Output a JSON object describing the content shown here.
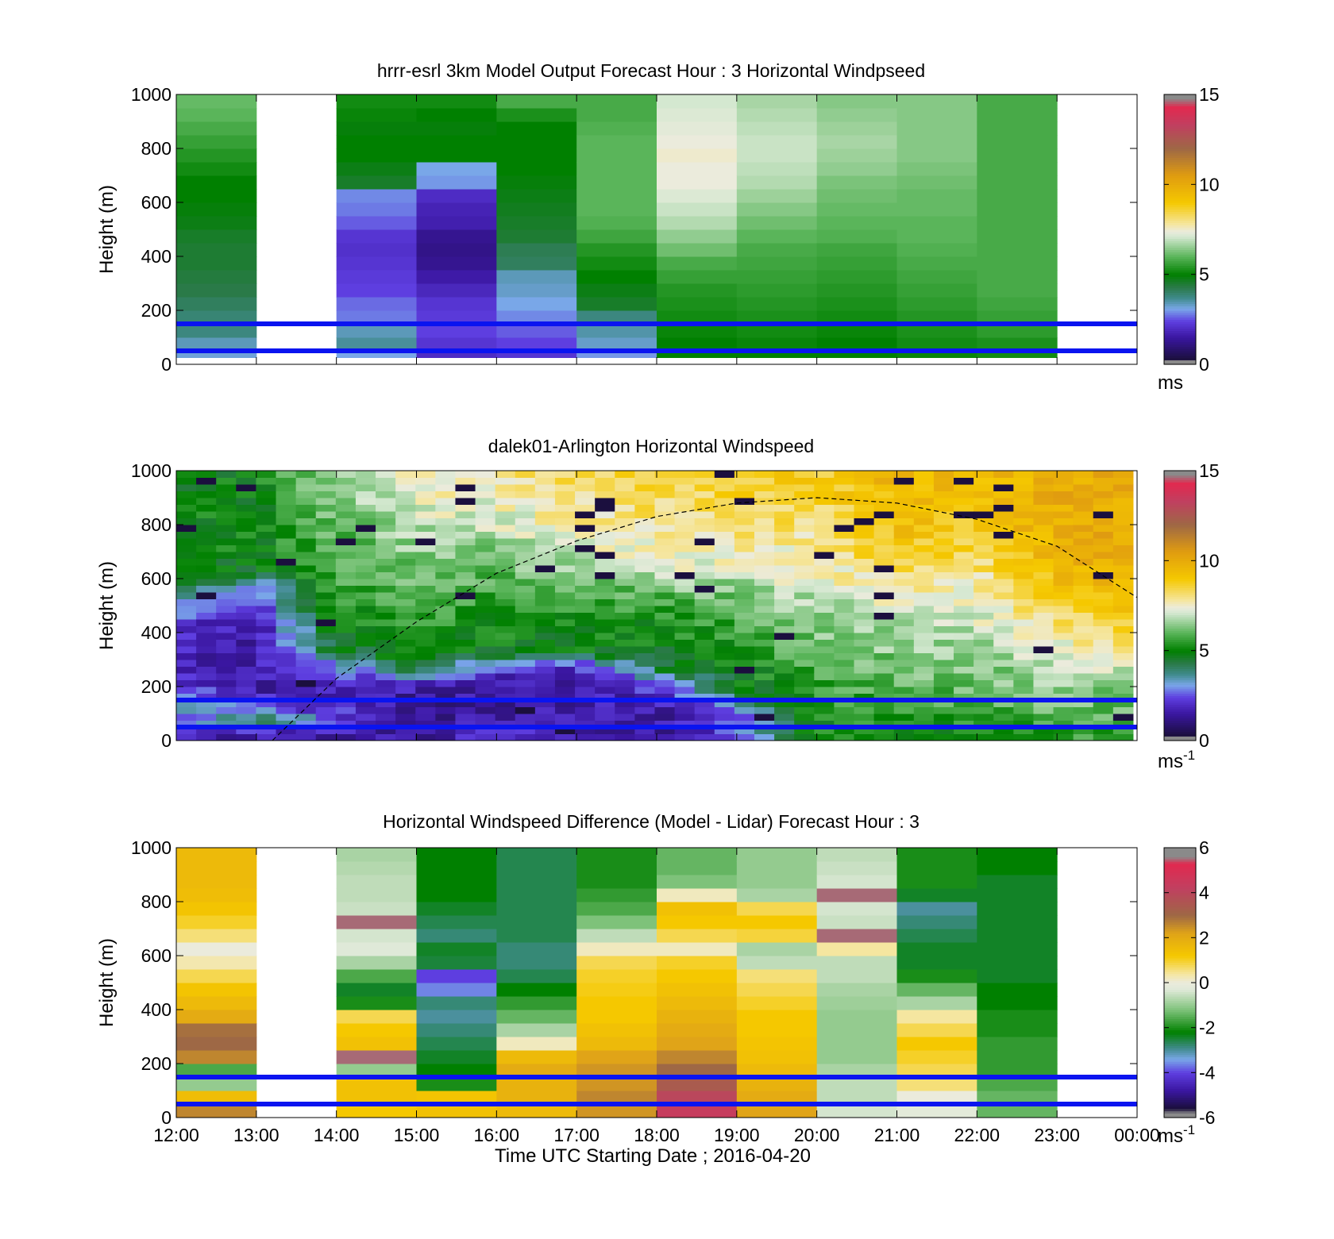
{
  "chart_data": [
    {
      "type": "heatmap",
      "title": "hrrr-esrl 3km Model Output   Forecast Hour : 3 Horizontal Windpseed",
      "ylabel": "Height (m)",
      "ylim": [
        0,
        1000
      ],
      "yticks": [
        0,
        200,
        400,
        600,
        800,
        1000
      ],
      "xlim_hours": [
        12,
        24
      ],
      "reference_lines_m": [
        50,
        150
      ],
      "colorbar": {
        "min": 0,
        "max": 15,
        "ticks": [
          0,
          5,
          10,
          15
        ],
        "unit_label": "ms",
        "unit_superscript": ""
      },
      "y_levels": [
        25,
        75,
        125,
        175,
        225,
        275,
        325,
        375,
        425,
        475,
        525,
        575,
        625,
        675,
        725,
        775,
        825,
        875,
        925,
        975
      ],
      "columns": [
        {
          "hour": 12,
          "values": [
            3.2,
            3.4,
            3.8,
            3.9,
            4.1,
            4.3,
            4.4,
            4.5,
            4.5,
            4.6,
            4.8,
            4.9,
            5.0,
            5.0,
            5.2,
            5.4,
            5.6,
            5.8,
            6.0,
            6.1
          ]
        },
        {
          "hour": 13,
          "values": null
        },
        {
          "hour": 14,
          "values": [
            3.1,
            3.6,
            3.4,
            2.8,
            2.7,
            2.4,
            2.3,
            2.2,
            2.1,
            2.2,
            2.6,
            2.8,
            2.9,
            4.6,
            4.8,
            5.0,
            5.0,
            4.9,
            5.1,
            5.2
          ]
        },
        {
          "hour": 15,
          "values": [
            2.0,
            2.2,
            2.4,
            2.3,
            2.2,
            1.9,
            1.6,
            1.3,
            1.2,
            1.3,
            1.7,
            1.8,
            2.0,
            3.0,
            3.1,
            5.0,
            5.0,
            4.9,
            5.0,
            5.2
          ]
        },
        {
          "hour": 16,
          "values": [
            2.2,
            2.4,
            2.6,
            2.9,
            3.1,
            3.3,
            3.4,
            4.1,
            4.2,
            4.5,
            4.6,
            4.7,
            4.8,
            4.9,
            5.0,
            5.0,
            5.0,
            5.0,
            5.3,
            5.8
          ]
        },
        {
          "hour": 17,
          "values": [
            3.0,
            3.3,
            3.5,
            3.8,
            4.6,
            4.8,
            5.0,
            5.2,
            5.4,
            5.7,
            5.9,
            6.0,
            6.0,
            6.0,
            6.0,
            6.0,
            6.0,
            5.9,
            5.8,
            5.8
          ]
        },
        {
          "hour": 18,
          "values": [
            5.0,
            5.0,
            5.1,
            5.2,
            5.3,
            5.4,
            5.6,
            5.8,
            6.2,
            6.5,
            6.8,
            7.0,
            7.2,
            7.4,
            7.4,
            7.5,
            7.4,
            7.3,
            7.2,
            7.1
          ]
        },
        {
          "hour": 19,
          "values": [
            5.0,
            5.1,
            5.2,
            5.3,
            5.4,
            5.5,
            5.6,
            5.7,
            5.8,
            6.0,
            6.2,
            6.4,
            6.6,
            6.8,
            6.9,
            7.0,
            7.0,
            6.9,
            6.8,
            6.7
          ]
        },
        {
          "hour": 20,
          "values": [
            5.0,
            5.0,
            5.1,
            5.2,
            5.3,
            5.4,
            5.5,
            5.6,
            5.7,
            5.9,
            6.0,
            6.1,
            6.2,
            6.3,
            6.5,
            6.6,
            6.7,
            6.6,
            6.5,
            6.4
          ]
        },
        {
          "hour": 21,
          "values": [
            5.1,
            5.2,
            5.3,
            5.4,
            5.5,
            5.6,
            5.7,
            5.8,
            5.9,
            6.0,
            6.0,
            6.1,
            6.1,
            6.2,
            6.3,
            6.4,
            6.4,
            6.4,
            6.4,
            6.4
          ]
        },
        {
          "hour": 22,
          "values": [
            5.2,
            5.3,
            5.5,
            5.6,
            5.7,
            5.8,
            5.8,
            5.8,
            5.8,
            5.8,
            5.8,
            5.8,
            5.8,
            5.8,
            5.8,
            5.8,
            5.8,
            5.8,
            5.8,
            5.8
          ]
        },
        {
          "hour": 23,
          "values": null
        }
      ]
    },
    {
      "type": "heatmap",
      "title": "dalek01-Arlington  Horizontal Windspeed",
      "ylabel": "Height (m)",
      "ylim": [
        0,
        1000
      ],
      "yticks": [
        0,
        200,
        400,
        600,
        800,
        1000
      ],
      "xlim_hours": [
        12,
        24
      ],
      "reference_lines_m": [
        50,
        150
      ],
      "colorbar": {
        "min": 0,
        "max": 15,
        "ticks": [
          0,
          5,
          10,
          15
        ],
        "unit_label": "ms",
        "unit_superscript": "-1"
      },
      "data_end_hour": 23.95,
      "mixing_height_curve": {
        "x_hours": [
          13.2,
          14.0,
          15.0,
          16.0,
          17.0,
          18.0,
          19.0,
          20.0,
          21.0,
          22.0,
          23.0,
          24.0
        ],
        "y_m": [
          0,
          230,
          440,
          620,
          740,
          830,
          880,
          900,
          880,
          820,
          720,
          530
        ]
      },
      "y_levels": [
        25,
        75,
        125,
        175,
        225,
        275,
        325,
        375,
        425,
        475,
        525,
        575,
        625,
        675,
        725,
        775,
        825,
        875,
        925,
        975
      ],
      "keyframes": [
        {
          "hour": 12.0,
          "values": [
            2.0,
            2.5,
            3.5,
            2.5,
            2.0,
            2.0,
            1.8,
            2.0,
            2.2,
            2.6,
            3.2,
            4.6,
            4.8,
            4.9,
            5.0,
            5.0,
            5.0,
            5.0,
            5.0,
            5.0
          ]
        },
        {
          "hour": 13.0,
          "values": [
            1.5,
            4.5,
            2.5,
            1.8,
            1.5,
            1.6,
            1.6,
            1.7,
            1.8,
            2.0,
            2.4,
            3.0,
            4.8,
            5.0,
            5.0,
            5.0,
            5.0,
            5.0,
            5.0,
            5.0
          ]
        },
        {
          "hour": 14.0,
          "values": [
            1.5,
            2.5,
            2.0,
            1.5,
            2.0,
            3.0,
            4.5,
            4.8,
            5.0,
            5.2,
            5.4,
            5.6,
            5.7,
            5.8,
            5.9,
            6.0,
            6.2,
            6.4,
            6.6,
            6.8
          ]
        },
        {
          "hour": 15.0,
          "values": [
            1.5,
            1.5,
            1.5,
            1.5,
            2.5,
            4.6,
            5.0,
            5.2,
            5.4,
            5.6,
            5.8,
            6.0,
            6.2,
            6.4,
            6.6,
            6.8,
            7.0,
            7.2,
            7.4,
            7.6
          ]
        },
        {
          "hour": 16.0,
          "values": [
            2.0,
            1.5,
            1.4,
            1.5,
            1.6,
            2.4,
            4.6,
            5.0,
            5.2,
            5.4,
            5.6,
            5.8,
            6.0,
            6.2,
            6.5,
            6.9,
            7.2,
            7.4,
            7.6,
            7.8
          ]
        },
        {
          "hour": 17.0,
          "values": [
            1.5,
            1.5,
            1.5,
            1.6,
            1.7,
            2.0,
            4.8,
            5.0,
            5.2,
            5.4,
            5.7,
            6.0,
            6.4,
            6.8,
            7.2,
            7.6,
            7.8,
            8.0,
            8.2,
            8.4
          ]
        },
        {
          "hour": 18.0,
          "values": [
            1.5,
            1.5,
            1.6,
            2.0,
            3.0,
            4.6,
            4.8,
            5.0,
            5.2,
            5.4,
            5.8,
            6.4,
            7.0,
            7.4,
            7.6,
            7.8,
            8.0,
            8.2,
            8.4,
            8.6
          ]
        },
        {
          "hour": 19.0,
          "values": [
            2.5,
            2.5,
            3.0,
            4.5,
            4.8,
            5.0,
            5.2,
            5.4,
            5.6,
            5.8,
            6.2,
            6.6,
            7.0,
            7.4,
            7.8,
            8.0,
            8.2,
            8.4,
            8.6,
            8.8
          ]
        },
        {
          "hour": 20.0,
          "values": [
            5.0,
            5.2,
            5.4,
            5.5,
            5.6,
            5.8,
            6.0,
            6.2,
            6.4,
            6.6,
            6.9,
            7.2,
            7.4,
            7.6,
            7.8,
            8.0,
            8.2,
            8.4,
            8.6,
            8.8
          ]
        },
        {
          "hour": 21.0,
          "values": [
            5.2,
            5.4,
            5.6,
            5.8,
            6.0,
            6.2,
            6.4,
            6.6,
            6.8,
            7.0,
            7.4,
            7.8,
            8.3,
            8.7,
            9.0,
            9.2,
            9.3,
            9.4,
            9.5,
            9.6
          ]
        },
        {
          "hour": 22.0,
          "values": [
            5.2,
            5.5,
            5.8,
            6.0,
            6.2,
            6.4,
            6.6,
            6.8,
            7.0,
            7.2,
            7.4,
            7.6,
            7.9,
            8.2,
            8.5,
            8.8,
            9.0,
            9.2,
            9.3,
            9.4
          ]
        },
        {
          "hour": 23.0,
          "values": [
            5.5,
            5.8,
            6.0,
            6.3,
            6.6,
            6.9,
            7.2,
            7.6,
            8.0,
            8.4,
            8.8,
            9.2,
            9.5,
            9.7,
            9.8,
            9.9,
            9.9,
            9.9,
            9.9,
            9.9
          ]
        },
        {
          "hour": 24.0,
          "values": [
            5.5,
            5.8,
            6.1,
            6.4,
            6.8,
            7.2,
            7.8,
            8.4,
            8.8,
            9.2,
            9.6,
            9.8,
            10.0,
            10.0,
            10.0,
            10.0,
            10.0,
            10.0,
            10.0,
            10.0
          ]
        }
      ]
    },
    {
      "type": "heatmap",
      "title": "Horizontal Windspeed Difference (Model - Lidar) Forecast Hour : 3",
      "ylabel": "Height (m)",
      "xlabel": "Time UTC  Starting Date ; 2016-04-20",
      "ylim": [
        0,
        1000
      ],
      "yticks": [
        0,
        200,
        400,
        600,
        800,
        1000
      ],
      "xlim_hours": [
        12,
        24
      ],
      "xtick_labels": [
        "12:00",
        "13:00",
        "14:00",
        "15:00",
        "16:00",
        "17:00",
        "18:00",
        "19:00",
        "20:00",
        "21:00",
        "22:00",
        "23:00",
        "00:00"
      ],
      "reference_lines_m": [
        50,
        150
      ],
      "colorbar": {
        "min": -6,
        "max": 6,
        "ticks": [
          -6,
          -4,
          -2,
          0,
          2,
          4,
          6
        ],
        "unit_label": "ms",
        "unit_superscript": "-1"
      },
      "y_levels": [
        25,
        75,
        125,
        175,
        225,
        275,
        325,
        375,
        425,
        475,
        525,
        575,
        625,
        675,
        725,
        775,
        825,
        875,
        925,
        975
      ],
      "columns": [
        {
          "hour": 12,
          "values": [
            2.6,
            1.5,
            -1.0,
            -1.6,
            2.6,
            3.0,
            2.9,
            2.0,
            1.6,
            1.3,
            0.8,
            0.3,
            0.0,
            0.6,
            1.0,
            1.3,
            1.5,
            1.6,
            1.6,
            1.6
          ]
        },
        {
          "hour": 13,
          "values": null
        },
        {
          "hour": 14,
          "values": [
            1.2,
            1.4,
            1.4,
            -1.0,
            5.5,
            1.4,
            1.2,
            0.8,
            -2.0,
            -2.4,
            -1.6,
            -0.8,
            -0.3,
            -0.4,
            5.5,
            -0.5,
            -0.6,
            -0.6,
            -0.7,
            -0.8
          ]
        },
        {
          "hour": 15,
          "values": [
            1.4,
            1.3,
            -2.0,
            -2.2,
            -2.4,
            -2.6,
            -2.8,
            -3.0,
            -2.8,
            -3.6,
            -4.0,
            -2.5,
            -2.4,
            -2.8,
            -2.6,
            -2.4,
            -2.2,
            -2.2,
            -2.2,
            -2.2
          ]
        },
        {
          "hour": 16,
          "values": [
            1.6,
            1.8,
            1.8,
            2.0,
            1.6,
            0.2,
            -0.8,
            -1.4,
            -1.8,
            -2.2,
            -2.6,
            -2.8,
            -2.8,
            -2.6,
            -2.6,
            -2.6,
            -2.6,
            -2.6,
            -2.6,
            -2.6
          ]
        },
        {
          "hour": 17,
          "values": [
            2.4,
            2.6,
            2.4,
            2.4,
            2.2,
            1.6,
            1.4,
            1.2,
            1.2,
            1.1,
            1.0,
            0.8,
            0.2,
            -0.6,
            -1.2,
            -1.6,
            -1.8,
            -2.0,
            -2.0,
            -2.0
          ]
        },
        {
          "hour": 18,
          "values": [
            4.4,
            4.0,
            3.4,
            3.0,
            2.6,
            2.2,
            2.0,
            1.8,
            1.6,
            1.4,
            1.2,
            1.0,
            0.2,
            0.8,
            1.2,
            1.4,
            0.2,
            -1.2,
            -1.4,
            -1.4
          ]
        },
        {
          "hour": 19,
          "values": [
            2.2,
            2.0,
            1.8,
            1.6,
            1.4,
            1.3,
            1.2,
            1.2,
            1.0,
            0.8,
            0.6,
            -0.6,
            -0.8,
            0.9,
            1.2,
            0.8,
            -0.8,
            -1.0,
            -1.0,
            -1.0
          ]
        },
        {
          "hour": 20,
          "values": [
            -0.4,
            -0.6,
            -0.6,
            -0.8,
            -1.0,
            -1.0,
            -1.0,
            -1.0,
            -0.9,
            -0.8,
            -0.6,
            -0.6,
            0.4,
            5.5,
            -0.5,
            -0.4,
            5.5,
            -0.4,
            -0.5,
            -0.6
          ]
        },
        {
          "hour": 21,
          "values": [
            -0.2,
            0.0,
            0.6,
            0.8,
            1.0,
            1.2,
            0.8,
            0.4,
            -0.8,
            -1.4,
            -2.0,
            -2.4,
            -2.4,
            -2.6,
            -2.8,
            -3.0,
            -2.4,
            -2.0,
            -2.0,
            -2.0
          ]
        },
        {
          "hour": 22,
          "values": [
            -1.4,
            -1.4,
            -1.6,
            -1.8,
            -1.8,
            -1.8,
            -2.0,
            -2.0,
            -2.2,
            -2.2,
            -2.4,
            -2.4,
            -2.4,
            -2.4,
            -2.4,
            -2.4,
            -2.4,
            -2.4,
            -2.2,
            -2.2
          ]
        },
        {
          "hour": 23,
          "values": null
        }
      ]
    }
  ]
}
